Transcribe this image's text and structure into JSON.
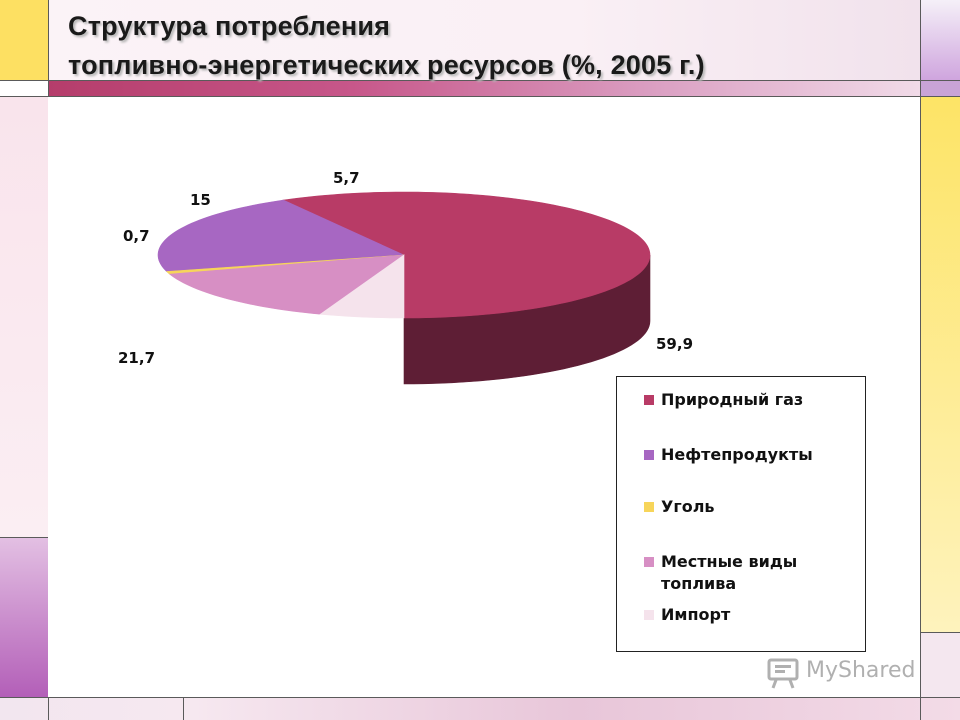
{
  "slide": {
    "title_line1": "Структура потребления",
    "title_line2": "топливно-энергетических ресурсов  (%, 2005 г.)"
  },
  "watermark": {
    "text": "MyShared",
    "icon": "presentation-board-icon"
  },
  "chart_data": {
    "type": "pie",
    "style": "3d",
    "title": "",
    "categories": [
      "Природный газ",
      "Нефтепродукты",
      "Уголь",
      "Местные виды топлива",
      "Импорт"
    ],
    "values": [
      59.9,
      21.7,
      0.7,
      15,
      5.7
    ],
    "value_labels": [
      "59,9",
      "21,7",
      "0,7",
      "15",
      "5,7"
    ],
    "colors": [
      "#b83b66",
      "#a767c2",
      "#f7d55a",
      "#d78fc4",
      "#f5e3ec"
    ],
    "side_colors": [
      "#5e1e35",
      "#553466",
      "#7f6d2e",
      "#6c4a63",
      "#7f7378"
    ],
    "legend": {
      "placement": "bottom-right",
      "items": [
        "Природный газ",
        "Нефтепродукты",
        "Уголь",
        "Местные виды\nтоплива",
        "Импорт"
      ]
    }
  }
}
